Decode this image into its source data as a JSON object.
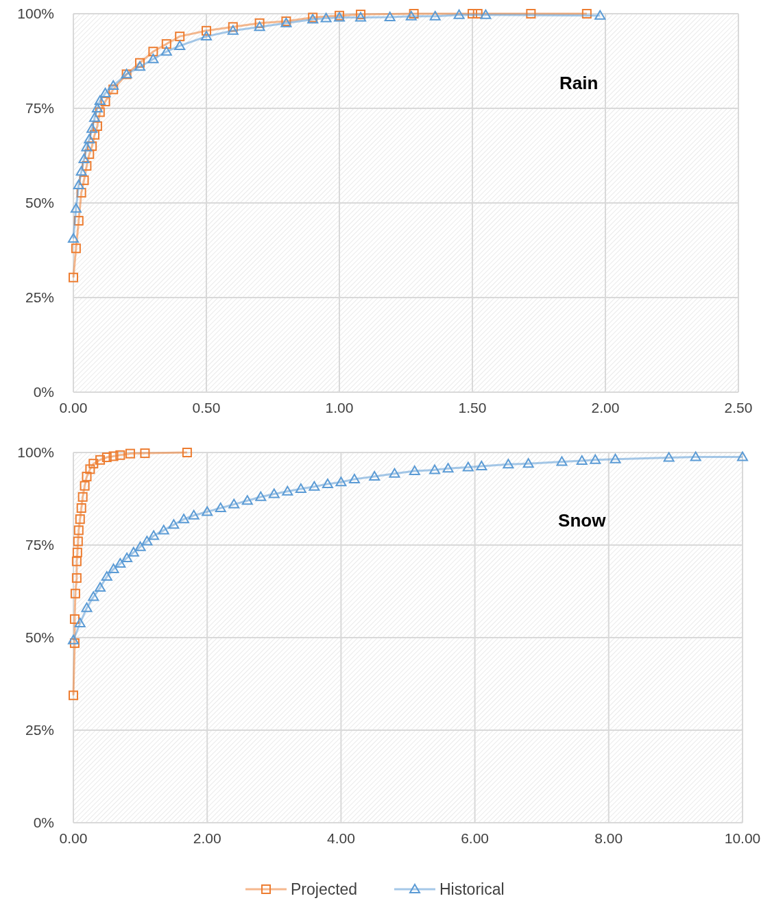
{
  "chart_data": [
    {
      "type": "line",
      "annotations": [
        "Rain"
      ],
      "xlim": [
        0,
        2.5
      ],
      "ylim": [
        0,
        100
      ],
      "xticks": [
        {
          "value": 0,
          "label": "0.00"
        },
        {
          "value": 0.5,
          "label": "0.50"
        },
        {
          "value": 1,
          "label": "1.00"
        },
        {
          "value": 1.5,
          "label": "1.50"
        },
        {
          "value": 2,
          "label": "2.00"
        },
        {
          "value": 2.5,
          "label": "2.50"
        }
      ],
      "yticks": [
        {
          "value": 0,
          "label": "0%"
        },
        {
          "value": 25,
          "label": "25%"
        },
        {
          "value": 50,
          "label": "50%"
        },
        {
          "value": 75,
          "label": "75%"
        },
        {
          "value": 100,
          "label": "100%"
        }
      ],
      "grid": true,
      "series": [
        {
          "color": "#ed7d31",
          "marker": "square",
          "x": [
            0,
            0.01,
            0.02,
            0.03,
            0.04,
            0.05,
            0.06,
            0.07,
            0.08,
            0.09,
            0.1,
            0.12,
            0.15,
            0.2,
            0.25,
            0.3,
            0.35,
            0.4,
            0.5,
            0.6,
            0.7,
            0.8,
            0.9,
            1.0,
            1.08,
            1.28,
            1.5,
            1.52,
            1.72,
            1.93
          ],
          "values": [
            30.3,
            38,
            45.3,
            52.7,
            56,
            59.8,
            62.9,
            65,
            68,
            70.3,
            74,
            76.8,
            80,
            84,
            87,
            90,
            92,
            94,
            95.5,
            96.5,
            97.5,
            98,
            99,
            99.5,
            99.8,
            100,
            100,
            100,
            100,
            100
          ]
        },
        {
          "color": "#5b9bd5",
          "marker": "triangle",
          "x": [
            0,
            0.01,
            0.02,
            0.03,
            0.04,
            0.05,
            0.06,
            0.07,
            0.08,
            0.09,
            0.1,
            0.12,
            0.15,
            0.2,
            0.25,
            0.3,
            0.35,
            0.4,
            0.5,
            0.6,
            0.7,
            0.8,
            0.9,
            0.95,
            1.0,
            1.08,
            1.19,
            1.27,
            1.36,
            1.45,
            1.55,
            1.98
          ],
          "values": [
            40.6,
            48.5,
            54.7,
            58.3,
            61.6,
            64.7,
            66.8,
            69.6,
            72.5,
            75,
            77,
            79,
            81,
            84,
            86,
            88,
            90,
            91.5,
            94,
            95.5,
            96.5,
            97.5,
            98.5,
            98.8,
            99,
            99,
            99.1,
            99.3,
            99.3,
            99.7,
            99.7,
            99.5
          ]
        }
      ]
    },
    {
      "type": "line",
      "annotations": [
        "Snow"
      ],
      "xlim": [
        0,
        10
      ],
      "ylim": [
        0,
        100
      ],
      "xticks": [
        {
          "value": 0,
          "label": "0.00"
        },
        {
          "value": 2,
          "label": "2.00"
        },
        {
          "value": 4,
          "label": "4.00"
        },
        {
          "value": 6,
          "label": "6.00"
        },
        {
          "value": 8,
          "label": "8.00"
        },
        {
          "value": 10,
          "label": "10.00"
        }
      ],
      "yticks": [
        {
          "value": 0,
          "label": "0%"
        },
        {
          "value": 25,
          "label": "25%"
        },
        {
          "value": 50,
          "label": "50%"
        },
        {
          "value": 75,
          "label": "75%"
        },
        {
          "value": 100,
          "label": "100%"
        }
      ],
      "grid": true,
      "legend": "bottom",
      "series": [
        {
          "name": "Projected",
          "color": "#ed7d31",
          "marker": "square",
          "x": [
            0,
            0.02,
            0.02,
            0.03,
            0.05,
            0.05,
            0.06,
            0.07,
            0.08,
            0.1,
            0.12,
            0.14,
            0.17,
            0.2,
            0.25,
            0.3,
            0.4,
            0.5,
            0.6,
            0.7,
            0.85,
            1.07,
            1.7
          ],
          "values": [
            34.4,
            48.5,
            55,
            61.9,
            66.1,
            70.6,
            73,
            76,
            79,
            82,
            85,
            88,
            91,
            93.5,
            95.5,
            97,
            98,
            98.7,
            99,
            99.3,
            99.7,
            99.8,
            100
          ]
        },
        {
          "name": "Historical",
          "color": "#5b9bd5",
          "marker": "triangle",
          "x": [
            0,
            0.1,
            0.2,
            0.3,
            0.4,
            0.5,
            0.6,
            0.7,
            0.8,
            0.9,
            1.0,
            1.1,
            1.2,
            1.35,
            1.5,
            1.65,
            1.8,
            2.0,
            2.2,
            2.4,
            2.6,
            2.8,
            3.0,
            3.2,
            3.4,
            3.6,
            3.8,
            4.0,
            4.2,
            4.5,
            4.8,
            5.1,
            5.4,
            5.6,
            5.9,
            6.1,
            6.5,
            6.8,
            7.3,
            7.6,
            7.8,
            8.1,
            8.9,
            9.3,
            10.0
          ],
          "values": [
            49.3,
            53.9,
            58,
            61,
            63.5,
            66.5,
            68.5,
            70,
            71.5,
            73,
            74.5,
            76,
            77.5,
            79,
            80.5,
            82,
            83,
            84,
            85,
            86,
            87,
            88,
            88.8,
            89.5,
            90.2,
            90.8,
            91.5,
            92,
            92.8,
            93.5,
            94.3,
            95,
            95.3,
            95.7,
            96,
            96.3,
            96.8,
            97,
            97.5,
            97.8,
            98,
            98.2,
            98.6,
            98.8,
            98.8
          ]
        }
      ]
    }
  ]
}
